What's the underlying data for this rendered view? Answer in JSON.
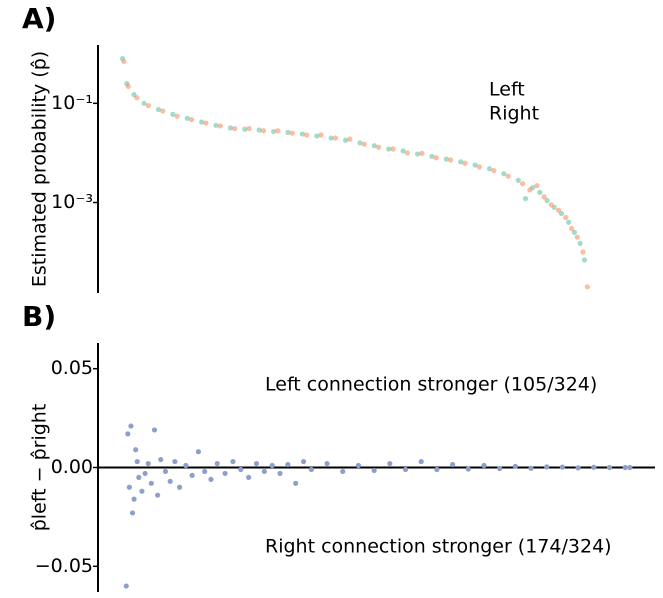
{
  "chart_data": [
    {
      "type": "scatter",
      "panel_label": "A)",
      "y_label": "Estimated probability (p̂)",
      "log_y": true,
      "xlim": [
        -17,
        370
      ],
      "ylim": [
        1.5e-05,
        1.5
      ],
      "yticks": [
        {
          "value": 0.1,
          "label": "10⁻¹"
        },
        {
          "value": 0.001,
          "label": "10⁻³"
        }
      ],
      "series": [
        {
          "name": "Left",
          "color": "#66c2a5",
          "x": [
            0,
            3,
            8,
            15,
            25,
            35,
            45,
            55,
            65,
            75,
            85,
            95,
            105,
            115,
            125,
            135,
            145,
            155,
            165,
            175,
            185,
            195,
            205,
            215,
            225,
            235,
            245,
            255,
            265,
            275,
            280,
            285,
            290,
            295,
            300,
            305,
            310,
            314,
            318,
            321
          ],
          "values": [
            0.8,
            0.25,
            0.15,
            0.1,
            0.075,
            0.06,
            0.05,
            0.042,
            0.036,
            0.032,
            0.03,
            0.029,
            0.027,
            0.026,
            0.024,
            0.022,
            0.02,
            0.018,
            0.016,
            0.014,
            0.012,
            0.011,
            0.0095,
            0.0085,
            0.0075,
            0.0066,
            0.0057,
            0.0048,
            0.0038,
            0.0028,
            0.0012,
            0.002,
            0.0016,
            0.0011,
            0.0008,
            0.0006,
            0.0004,
            0.00025,
            0.00015,
            7e-05
          ]
        },
        {
          "name": "Right",
          "color": "#fc8d62",
          "x": [
            1,
            4,
            10,
            18,
            28,
            38,
            48,
            58,
            68,
            78,
            88,
            98,
            108,
            118,
            128,
            138,
            148,
            158,
            168,
            178,
            188,
            198,
            208,
            218,
            228,
            238,
            248,
            258,
            268,
            278,
            283,
            288,
            293,
            298,
            303,
            308,
            312,
            316,
            320,
            323
          ],
          "values": [
            0.7,
            0.22,
            0.13,
            0.09,
            0.07,
            0.055,
            0.047,
            0.04,
            0.035,
            0.031,
            0.031,
            0.028,
            0.028,
            0.025,
            0.023,
            0.023,
            0.02,
            0.019,
            0.015,
            0.013,
            0.012,
            0.01,
            0.0098,
            0.008,
            0.0072,
            0.0062,
            0.0052,
            0.0044,
            0.0034,
            0.0024,
            0.0018,
            0.0022,
            0.0013,
            0.0009,
            0.0007,
            0.0005,
            0.0003,
            0.0002,
            0.0001,
            2e-05
          ]
        }
      ]
    },
    {
      "type": "scatter",
      "panel_label": "B)",
      "y_label": "p̂left − p̂right",
      "xlim": [
        -16,
        339
      ],
      "ylim": [
        -0.063,
        0.063
      ],
      "hline": 0,
      "yticks": [
        {
          "value": 0.05,
          "label": "0.05"
        },
        {
          "value": 0,
          "label": "0.00"
        },
        {
          "value": -0.05,
          "label": "−0.05"
        }
      ],
      "annotations": [
        {
          "text": "Left connection stronger (105/324)",
          "color": "#66c2a5"
        },
        {
          "text": "Right connection stronger (174/324)",
          "color": "#fc8d62"
        }
      ],
      "series": [
        {
          "color": "#8da0cb",
          "x": [
            2,
            3,
            4,
            5,
            6,
            7,
            8,
            9,
            10,
            12,
            14,
            16,
            18,
            20,
            22,
            24,
            27,
            30,
            33,
            36,
            40,
            44,
            48,
            52,
            56,
            60,
            65,
            70,
            75,
            80,
            85,
            90,
            95,
            100,
            105,
            110,
            115,
            120,
            130,
            140,
            150,
            160,
            170,
            180,
            190,
            200,
            210,
            220,
            230,
            240,
            250,
            260,
            270,
            280,
            290,
            300,
            310,
            320,
            323
          ],
          "values": [
            -0.06,
            0.017,
            -0.01,
            0.021,
            -0.023,
            -0.016,
            0.009,
            0.003,
            -0.005,
            -0.012,
            -0.003,
            0.002,
            -0.008,
            0.019,
            -0.014,
            0.004,
            -0.002,
            -0.007,
            0.003,
            -0.01,
            0.001,
            -0.004,
            0.008,
            -0.002,
            -0.006,
            0.002,
            -0.003,
            0.003,
            -0.001,
            -0.005,
            0.002,
            -0.002,
            0.001,
            -0.003,
            0.0015,
            -0.008,
            0.003,
            -0.001,
            0.002,
            -0.002,
            0.001,
            -0.0015,
            0.002,
            -0.001,
            0.003,
            -0.001,
            0.0015,
            -0.0008,
            0.001,
            -0.0005,
            0.0006,
            -0.0004,
            0.0003,
            0.0002,
            -0.0002,
            0.0001,
            0,
            0,
            0
          ]
        }
      ]
    }
  ]
}
